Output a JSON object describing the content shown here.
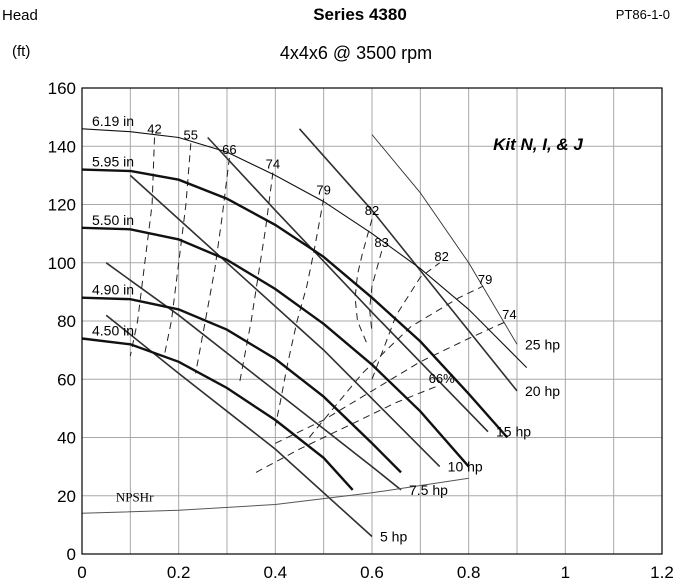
{
  "chart_data": {
    "type": "line",
    "title": "Series 4380",
    "subtitle": "4x4x6 @ 3500 rpm",
    "ylabel": "Head",
    "yunit": "(ft)",
    "code": "PT86-1-0",
    "annotation": "Kit N, I, & J",
    "xlim": [
      0,
      1.2
    ],
    "ylim": [
      0,
      160
    ],
    "xticks": [
      "0",
      "0.2",
      "0.4",
      "0.6",
      "0.8",
      "1",
      "1.2"
    ],
    "yticks": [
      "0",
      "20",
      "40",
      "60",
      "80",
      "100",
      "120",
      "140",
      "160"
    ],
    "grid": true,
    "impeller_curves": [
      {
        "name": "6.19 in",
        "points": [
          [
            0,
            146
          ],
          [
            0.1,
            145
          ],
          [
            0.2,
            143
          ],
          [
            0.3,
            138
          ],
          [
            0.4,
            130
          ],
          [
            0.5,
            121
          ],
          [
            0.6,
            110
          ],
          [
            0.7,
            98
          ],
          [
            0.8,
            84
          ],
          [
            0.86,
            74
          ],
          [
            0.92,
            64
          ]
        ]
      },
      {
        "name": "5.95 in",
        "points": [
          [
            0,
            132
          ],
          [
            0.1,
            131.5
          ],
          [
            0.2,
            128.5
          ],
          [
            0.3,
            122
          ],
          [
            0.4,
            113
          ],
          [
            0.5,
            102
          ],
          [
            0.6,
            88
          ],
          [
            0.7,
            73
          ],
          [
            0.8,
            55
          ],
          [
            0.88,
            40
          ]
        ]
      },
      {
        "name": "5.50 in",
        "points": [
          [
            0,
            112
          ],
          [
            0.1,
            111.5
          ],
          [
            0.2,
            108
          ],
          [
            0.3,
            101
          ],
          [
            0.4,
            91
          ],
          [
            0.5,
            79
          ],
          [
            0.6,
            65
          ],
          [
            0.7,
            49
          ],
          [
            0.8,
            30
          ]
        ]
      },
      {
        "name": "4.90 in",
        "points": [
          [
            0,
            88
          ],
          [
            0.1,
            87.5
          ],
          [
            0.2,
            84
          ],
          [
            0.3,
            77
          ],
          [
            0.4,
            67
          ],
          [
            0.5,
            54
          ],
          [
            0.6,
            38
          ],
          [
            0.66,
            28
          ]
        ]
      },
      {
        "name": "4.50 in",
        "points": [
          [
            0,
            74
          ],
          [
            0.1,
            72
          ],
          [
            0.2,
            66
          ],
          [
            0.3,
            57
          ],
          [
            0.4,
            46
          ],
          [
            0.5,
            33
          ],
          [
            0.56,
            22
          ]
        ]
      }
    ],
    "efficiency_curves": [
      {
        "name": "42",
        "points": [
          [
            0.15,
            143
          ],
          [
            0.145,
            120
          ],
          [
            0.13,
            100
          ],
          [
            0.115,
            80
          ],
          [
            0.1,
            68
          ]
        ]
      },
      {
        "name": "55",
        "points": [
          [
            0.225,
            141
          ],
          [
            0.215,
            120
          ],
          [
            0.2,
            100
          ],
          [
            0.185,
            80
          ],
          [
            0.17,
            68
          ]
        ]
      },
      {
        "name": "66",
        "points": [
          [
            0.305,
            136
          ],
          [
            0.29,
            116
          ],
          [
            0.275,
            98
          ],
          [
            0.255,
            80
          ],
          [
            0.235,
            62
          ]
        ]
      },
      {
        "name": "74",
        "points": [
          [
            0.395,
            131
          ],
          [
            0.38,
            112
          ],
          [
            0.365,
            96
          ],
          [
            0.35,
            80
          ],
          [
            0.325,
            58
          ]
        ]
      },
      {
        "name": "79",
        "points": [
          [
            0.5,
            122
          ],
          [
            0.48,
            104
          ],
          [
            0.465,
            92
          ],
          [
            0.445,
            80
          ],
          [
            0.425,
            65
          ],
          [
            0.41,
            52
          ],
          [
            0.4,
            44
          ]
        ]
      },
      {
        "name": "82",
        "points": [
          [
            0.6,
            115
          ],
          [
            0.58,
            103
          ],
          [
            0.57,
            96
          ],
          [
            0.565,
            88
          ],
          [
            0.57,
            80
          ],
          [
            0.59,
            72
          ]
        ]
      },
      {
        "name": "83",
        "points": [
          [
            0.62,
            104
          ],
          [
            0.6,
            92
          ],
          [
            0.595,
            84
          ],
          [
            0.6,
            76
          ]
        ]
      },
      {
        "name": "82",
        "points": [
          [
            0.6,
            60
          ],
          [
            0.65,
            82
          ],
          [
            0.7,
            95
          ],
          [
            0.74,
            100
          ]
        ]
      },
      {
        "name": "79",
        "points": [
          [
            0.47,
            40
          ],
          [
            0.58,
            62
          ],
          [
            0.68,
            78
          ],
          [
            0.78,
            88
          ],
          [
            0.83,
            92
          ]
        ]
      },
      {
        "name": "74",
        "points": [
          [
            0.4,
            38
          ],
          [
            0.5,
            46
          ],
          [
            0.6,
            56
          ],
          [
            0.7,
            66
          ],
          [
            0.8,
            74
          ],
          [
            0.88,
            80
          ]
        ]
      },
      {
        "name": "66%",
        "points": [
          [
            0.36,
            28
          ],
          [
            0.45,
            36
          ],
          [
            0.55,
            44
          ],
          [
            0.65,
            52
          ],
          [
            0.74,
            58
          ]
        ]
      }
    ],
    "power_curves": [
      {
        "name": "25 hp",
        "points": [
          [
            0.6,
            144
          ],
          [
            0.7,
            124
          ],
          [
            0.8,
            100
          ],
          [
            0.9,
            72
          ]
        ]
      },
      {
        "name": "20 hp",
        "points": [
          [
            0.45,
            146
          ],
          [
            0.6,
            118
          ],
          [
            0.75,
            87
          ],
          [
            0.9,
            56
          ]
        ]
      },
      {
        "name": "15 hp",
        "points": [
          [
            0.26,
            143
          ],
          [
            0.4,
            118
          ],
          [
            0.6,
            83
          ],
          [
            0.84,
            42
          ]
        ]
      },
      {
        "name": "10 hp",
        "points": [
          [
            0.1,
            130
          ],
          [
            0.3,
            100
          ],
          [
            0.5,
            70
          ],
          [
            0.74,
            30
          ]
        ]
      },
      {
        "name": "7.5 hp",
        "points": [
          [
            0.05,
            100
          ],
          [
            0.2,
            82
          ],
          [
            0.4,
            56
          ],
          [
            0.6,
            30
          ],
          [
            0.66,
            22
          ]
        ]
      },
      {
        "name": "5 hp",
        "points": [
          [
            0.05,
            82
          ],
          [
            0.2,
            62
          ],
          [
            0.4,
            36
          ],
          [
            0.6,
            6
          ]
        ]
      }
    ],
    "npshr_curve": {
      "name": "NPSHr",
      "points": [
        [
          0,
          14
        ],
        [
          0.2,
          15
        ],
        [
          0.4,
          17
        ],
        [
          0.6,
          21
        ],
        [
          0.8,
          26
        ]
      ]
    }
  }
}
